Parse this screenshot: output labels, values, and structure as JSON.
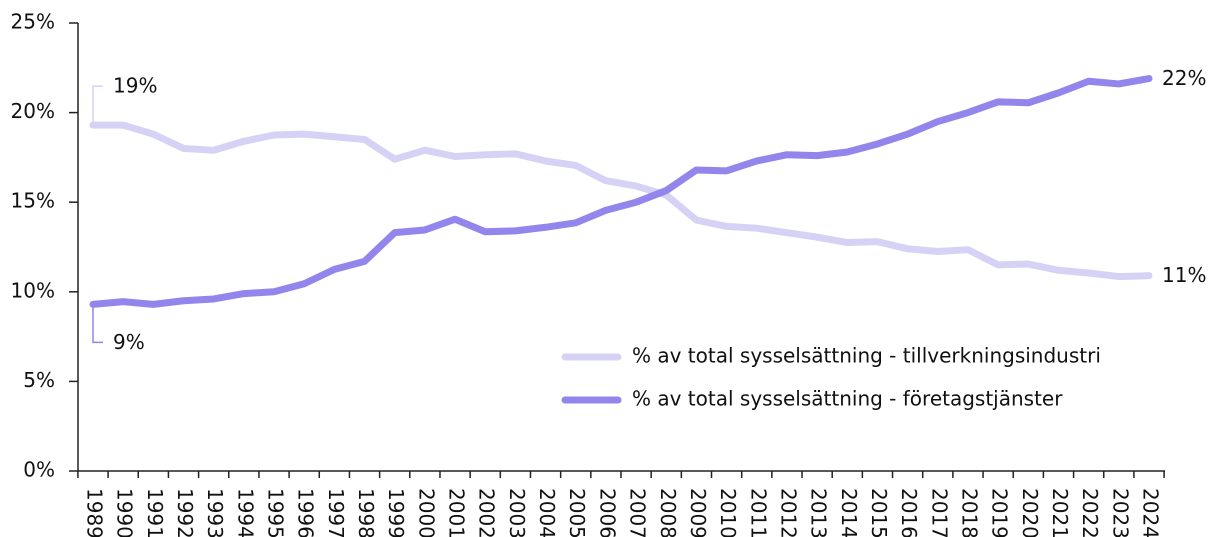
{
  "chart_data": {
    "type": "line",
    "categories": [
      "1989",
      "1990",
      "1991",
      "1992",
      "1993",
      "1994",
      "1995",
      "1996",
      "1997",
      "1998",
      "1999",
      "2000",
      "2001",
      "2002",
      "2003",
      "2004",
      "2005",
      "2006",
      "2007",
      "2008",
      "2009",
      "2010",
      "2011",
      "2012",
      "2013",
      "2014",
      "2015",
      "2016",
      "2017",
      "2018",
      "2019",
      "2020",
      "2021",
      "2022",
      "2023",
      "2024"
    ],
    "series": [
      {
        "name": "% av total sysselsättning - tillverkningsindustri",
        "color": "#d6d2f6",
        "values": [
          19.3,
          19.3,
          18.8,
          18.0,
          17.9,
          18.4,
          18.75,
          18.8,
          18.65,
          18.5,
          17.4,
          17.9,
          17.55,
          17.65,
          17.7,
          17.3,
          17.05,
          16.2,
          15.9,
          15.4,
          14.0,
          13.65,
          13.55,
          13.3,
          13.05,
          12.75,
          12.8,
          12.4,
          12.25,
          12.35,
          11.5,
          11.55,
          11.2,
          11.05,
          10.85,
          10.9
        ],
        "start_label": "19%",
        "end_label": "11%"
      },
      {
        "name": "% av total sysselsättning - företagstjänster",
        "color": "#9286ec",
        "values": [
          9.3,
          9.45,
          9.3,
          9.5,
          9.6,
          9.9,
          10.0,
          10.45,
          11.25,
          11.7,
          13.3,
          13.45,
          14.05,
          13.35,
          13.4,
          13.6,
          13.85,
          14.55,
          15.0,
          15.65,
          16.8,
          16.75,
          17.3,
          17.65,
          17.6,
          17.8,
          18.25,
          18.8,
          19.5,
          20.0,
          20.6,
          20.55,
          21.1,
          21.75,
          21.6,
          21.9
        ],
        "start_label": "9%",
        "end_label": "22%"
      }
    ],
    "ylim": [
      0,
      25
    ],
    "yticks": [
      {
        "value": 0,
        "label": "0%"
      },
      {
        "value": 5,
        "label": "5%"
      },
      {
        "value": 10,
        "label": "10%"
      },
      {
        "value": 15,
        "label": "15%"
      },
      {
        "value": 20,
        "label": "20%"
      },
      {
        "value": 25,
        "label": "25%"
      }
    ],
    "grid": false,
    "legend": "lower right"
  }
}
